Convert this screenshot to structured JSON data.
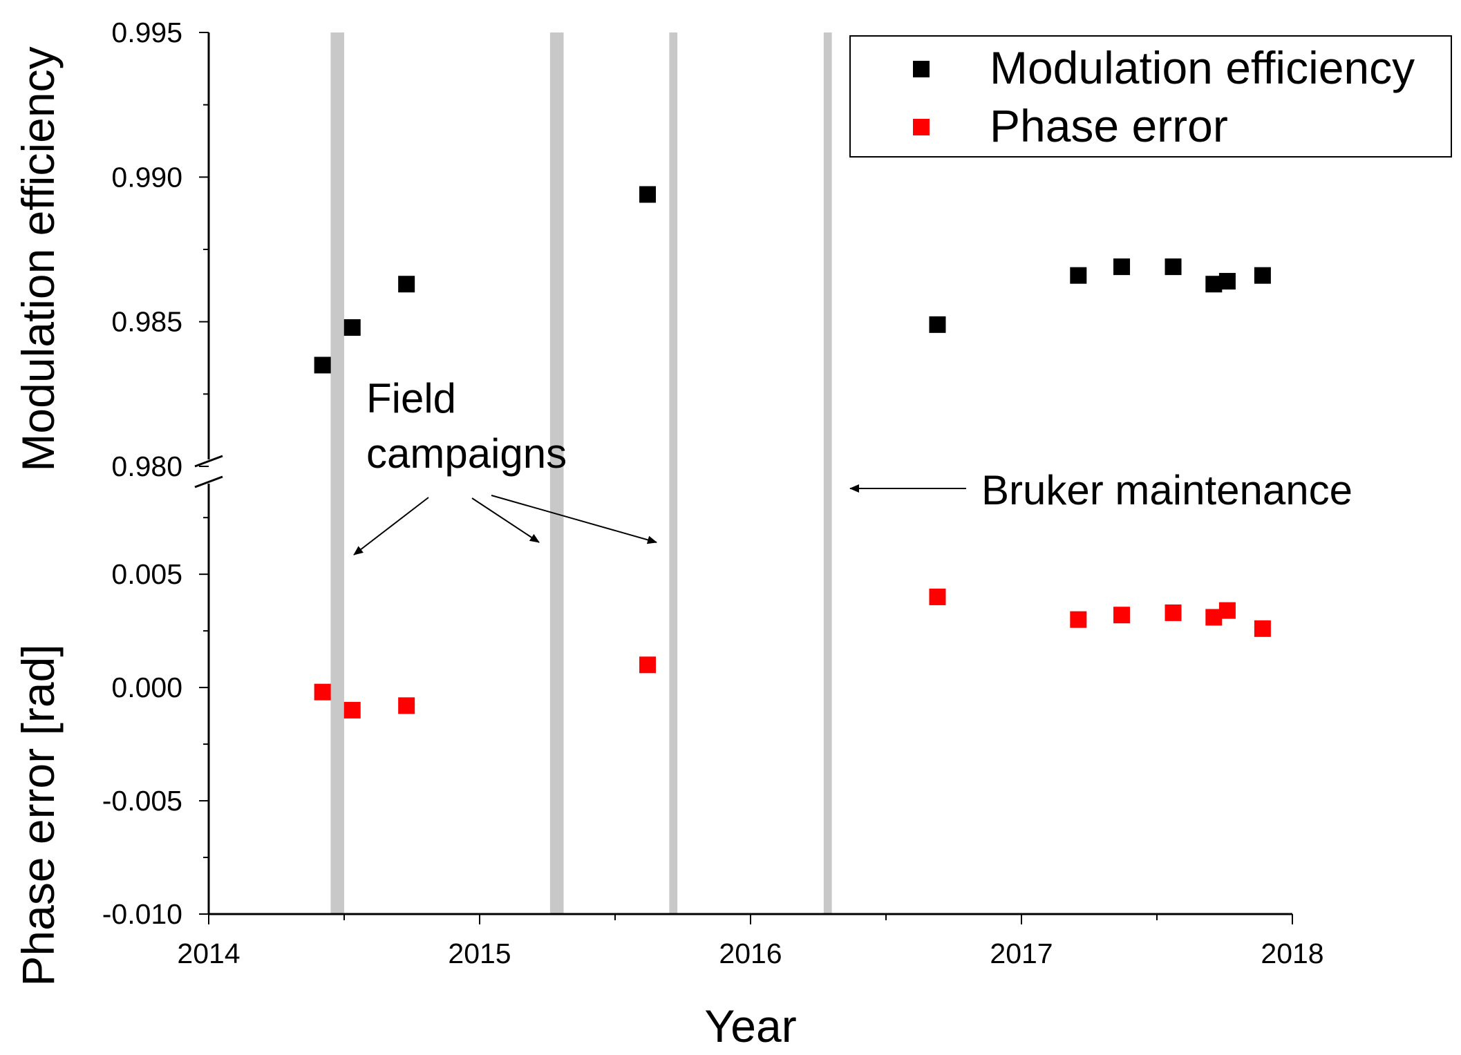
{
  "chart_data": {
    "type": "scatter",
    "xlabel": "Year",
    "x_ticks": [
      "2014",
      "2015",
      "2016",
      "2017",
      "2018"
    ],
    "xlim": [
      2014,
      2018
    ],
    "panels": {
      "upper": {
        "ylabel": "Modulation efficiency",
        "ylim": [
          0.98,
          0.995
        ],
        "y_ticks": [
          "0.980",
          "0.985",
          "0.990",
          "0.995"
        ]
      },
      "lower": {
        "ylabel": "Phase error [rad]",
        "ylim": [
          -0.01,
          0.009
        ],
        "y_ticks": [
          "-0.010",
          "-0.005",
          "0.000",
          "0.005"
        ]
      }
    },
    "series": [
      {
        "name": "Modulation efficiency",
        "panel": "upper",
        "color": "#000000",
        "marker": "square",
        "x": [
          2014.42,
          2014.53,
          2014.73,
          2015.62,
          2016.69,
          2017.21,
          2017.37,
          2017.56,
          2017.71,
          2017.76,
          2017.89
        ],
        "y": [
          0.9835,
          0.9848,
          0.9863,
          0.9894,
          0.9849,
          0.9866,
          0.9869,
          0.9869,
          0.9863,
          0.9864,
          0.9866
        ]
      },
      {
        "name": "Phase error",
        "panel": "lower",
        "color": "#ff0000",
        "marker": "square",
        "x": [
          2014.42,
          2014.53,
          2014.73,
          2015.62,
          2016.69,
          2017.21,
          2017.37,
          2017.56,
          2017.71,
          2017.76,
          2017.89
        ],
        "y": [
          -0.0002,
          -0.001,
          -0.0008,
          0.001,
          0.004,
          0.003,
          0.0032,
          0.0033,
          0.0031,
          0.0034,
          0.0026
        ]
      }
    ],
    "shaded_periods": [
      {
        "start": 2014.45,
        "end": 2014.5
      },
      {
        "start": 2015.26,
        "end": 2015.31
      },
      {
        "start": 2015.7,
        "end": 2015.73
      },
      {
        "start": 2016.27,
        "end": 2016.3
      }
    ],
    "annotations": {
      "field_line1": "Field",
      "field_line2": "campaigns",
      "bruker": "Bruker maintenance"
    },
    "legend": {
      "position": "top-right",
      "entries": [
        "Modulation efficiency",
        "Phase error"
      ]
    },
    "colors": {
      "shade": "#c8c8c8",
      "modulation": "#000000",
      "phase": "#ff0000"
    }
  }
}
